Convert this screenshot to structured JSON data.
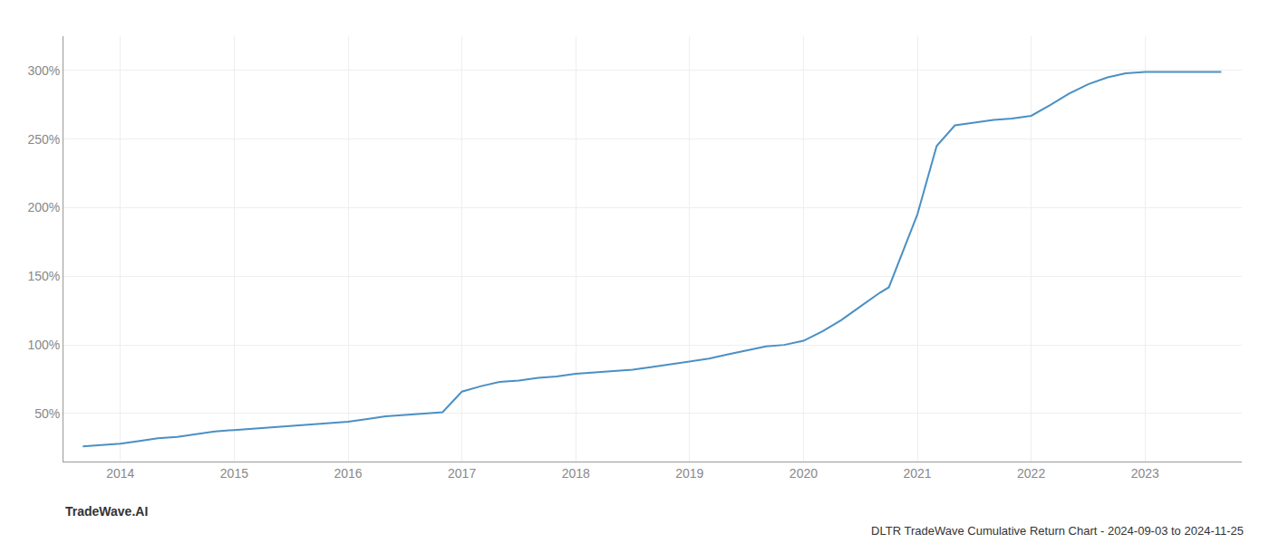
{
  "chart_data": {
    "type": "line",
    "title": "DLTR TradeWave Cumulative Return Chart - 2024-09-03 to 2024-11-25",
    "annotations": [
      {
        "text": "TradeWave.AI"
      }
    ],
    "x": [
      2013.67,
      2013.83,
      2014.0,
      2014.17,
      2014.33,
      2014.5,
      2014.67,
      2014.83,
      2015.0,
      2015.17,
      2015.33,
      2015.5,
      2015.67,
      2015.83,
      2016.0,
      2016.17,
      2016.33,
      2016.5,
      2016.67,
      2016.83,
      2017.0,
      2017.17,
      2017.33,
      2017.5,
      2017.67,
      2017.83,
      2018.0,
      2018.17,
      2018.33,
      2018.5,
      2018.67,
      2018.83,
      2019.0,
      2019.17,
      2019.33,
      2019.5,
      2019.67,
      2019.83,
      2020.0,
      2020.17,
      2020.33,
      2020.5,
      2020.67,
      2020.75,
      2021.0,
      2021.17,
      2021.33,
      2021.5,
      2021.67,
      2021.83,
      2022.0,
      2022.17,
      2022.33,
      2022.5,
      2022.67,
      2022.83,
      2023.0,
      2023.17,
      2023.5,
      2023.67
    ],
    "values": [
      26,
      27,
      28,
      30,
      32,
      33,
      35,
      37,
      38,
      39,
      40,
      41,
      42,
      43,
      44,
      46,
      48,
      49,
      50,
      51,
      66,
      70,
      73,
      74,
      76,
      77,
      79,
      80,
      81,
      82,
      84,
      86,
      88,
      90,
      93,
      96,
      99,
      100,
      103,
      110,
      118,
      128,
      138,
      142,
      195,
      245,
      260,
      262,
      264,
      265,
      267,
      275,
      283,
      290,
      295,
      298,
      299,
      299,
      299,
      299
    ],
    "color": "#4a90c4",
    "xlim": [
      2013.5,
      2023.85
    ],
    "ylim": [
      15,
      325
    ],
    "xticks": [
      2014,
      2015,
      2016,
      2017,
      2018,
      2019,
      2020,
      2021,
      2022,
      2023
    ],
    "yticks": [
      {
        "value": 50,
        "label": "50%"
      },
      {
        "value": 100,
        "label": "100%"
      },
      {
        "value": 150,
        "label": "150%"
      },
      {
        "value": 200,
        "label": "200%"
      },
      {
        "value": 250,
        "label": "250%"
      },
      {
        "value": 300,
        "label": "300%"
      }
    ],
    "grid": true
  }
}
